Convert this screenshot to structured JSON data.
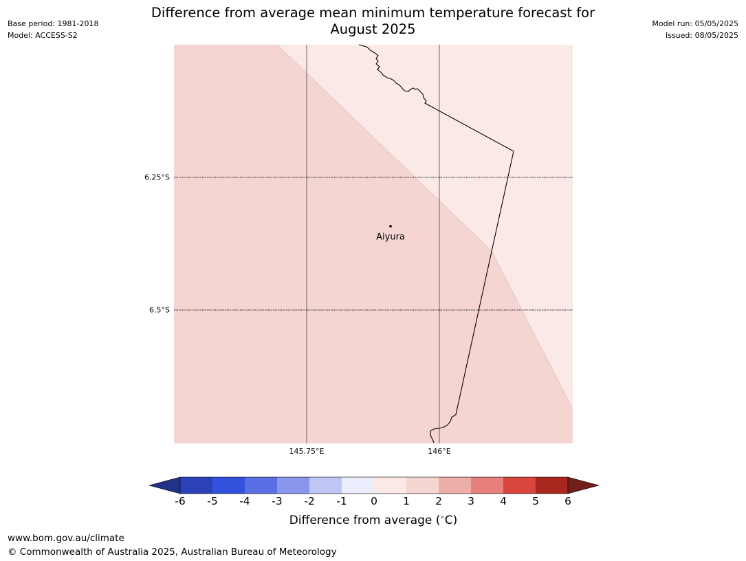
{
  "header": {
    "title_line1": "Difference from average mean minimum temperature forecast for",
    "title_line2": "August 2025",
    "base_period": "Base period: 1981-2018",
    "model": "Model: ACCESS-S2",
    "model_run": "Model run: 05/05/2025",
    "issued": "Issued: 08/05/2025"
  },
  "map": {
    "place_label": "Aiyura",
    "lat_labels": [
      "6.25°S",
      "6.5°S"
    ],
    "lon_labels": [
      "145.75°E",
      "146°E"
    ],
    "colors": {
      "anomaly_0_to_1": "#fbe9e7",
      "anomaly_1_to_2": "#f5d5d2",
      "coastline": "#000000",
      "graticule": "#555555"
    }
  },
  "colorbar": {
    "label": "Difference from average ($^\\circ$C)",
    "label_text": "Difference from average (",
    "label_unit": "C)",
    "ticks": [
      "-6",
      "-5",
      "-4",
      "-3",
      "-2",
      "-1",
      "0",
      "1",
      "2",
      "3",
      "4",
      "5",
      "6"
    ],
    "colors": [
      "#22328a",
      "#2a41b8",
      "#3252de",
      "#5b6fe4",
      "#8896ec",
      "#c1c7f5",
      "#ebedfd",
      "#fbe9e7",
      "#f5d5d2",
      "#edaeaa",
      "#e5807a",
      "#d8463e",
      "#a9271f",
      "#6f1e1a"
    ]
  },
  "footer": {
    "url": "www.bom.gov.au/climate",
    "copyright": "© Commonwealth of Australia 2025, Australian Bureau of Meteorology"
  }
}
